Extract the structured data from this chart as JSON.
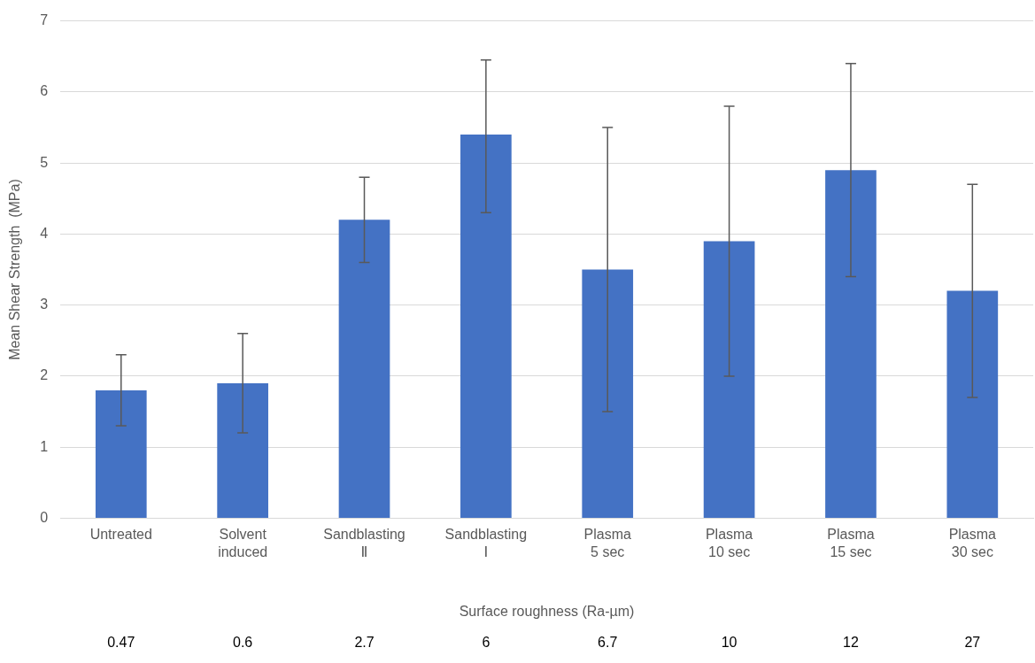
{
  "chart_data": {
    "type": "bar",
    "categories": [
      "Untreated",
      "Solvent\ninduced",
      "Sandblasting\nⅡ",
      "Sandblasting\nⅠ",
      "Plasma\n5 sec",
      "Plasma\n10 sec",
      "Plasma\n15 sec",
      "Plasma\n30 sec"
    ],
    "values": [
      1.8,
      1.9,
      4.2,
      5.4,
      3.5,
      3.9,
      4.9,
      3.2
    ],
    "errors": [
      [
        1.3,
        2.3
      ],
      [
        1.2,
        2.6
      ],
      [
        3.6,
        4.8
      ],
      [
        4.3,
        6.45
      ],
      [
        1.5,
        5.5
      ],
      [
        2.0,
        5.8
      ],
      [
        3.4,
        6.4
      ],
      [
        1.7,
        4.7
      ]
    ],
    "color": "#4472c4",
    "ylabel": "Mean Shear Strength  (MPa)",
    "xlabel": "Surface roughness (Ra-µm)",
    "ylim": [
      0,
      7
    ],
    "yticks": [
      0,
      1,
      2,
      3,
      4,
      5,
      6,
      7
    ],
    "grid": "y",
    "annotations": [
      "0.47",
      "0.6",
      "2.7",
      "6",
      "6.7",
      "10",
      "12",
      "27"
    ]
  }
}
